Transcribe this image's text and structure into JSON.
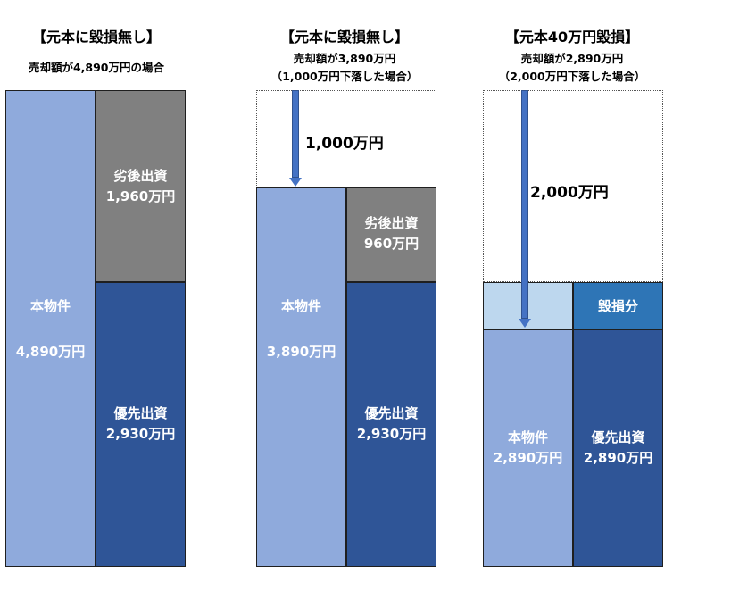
{
  "panel1": {
    "title": "【元本に毀損無し】",
    "sub1": "売却額が4,890万円の場合",
    "property": "本物件",
    "property_value": "4,890万円",
    "mezz_label": "劣後出資",
    "mezz_value": "1,960万円",
    "senior_label": "優先出資",
    "senior_value": "2,930万円"
  },
  "panel2": {
    "title": "【元本に毀損無し】",
    "sub1": "売却額が3,890万円",
    "sub2": "（1,000万円下落した場合）",
    "drop": "1,000万円",
    "property": "本物件",
    "property_value": "3,890万円",
    "mezz_label": "劣後出資",
    "mezz_value": "960万円",
    "senior_label": "優先出資",
    "senior_value": "2,930万円"
  },
  "panel3": {
    "title": "【元本40万円毀損】",
    "sub1": "売却額が2,890万円",
    "sub2": "（2,000万円下落した場合）",
    "drop": "2,000万円",
    "loss_label": "毀損分",
    "property": "本物件",
    "property_value": "2,890万円",
    "senior_label": "優先出資",
    "senior_value": "2,890万円"
  },
  "colors": {
    "property": "#8faadc",
    "subordinate": "#808080",
    "senior": "#2f5597",
    "loss_light": "#bdd7ee",
    "loss": "#2e75b6",
    "arrow": "#4472c4"
  }
}
